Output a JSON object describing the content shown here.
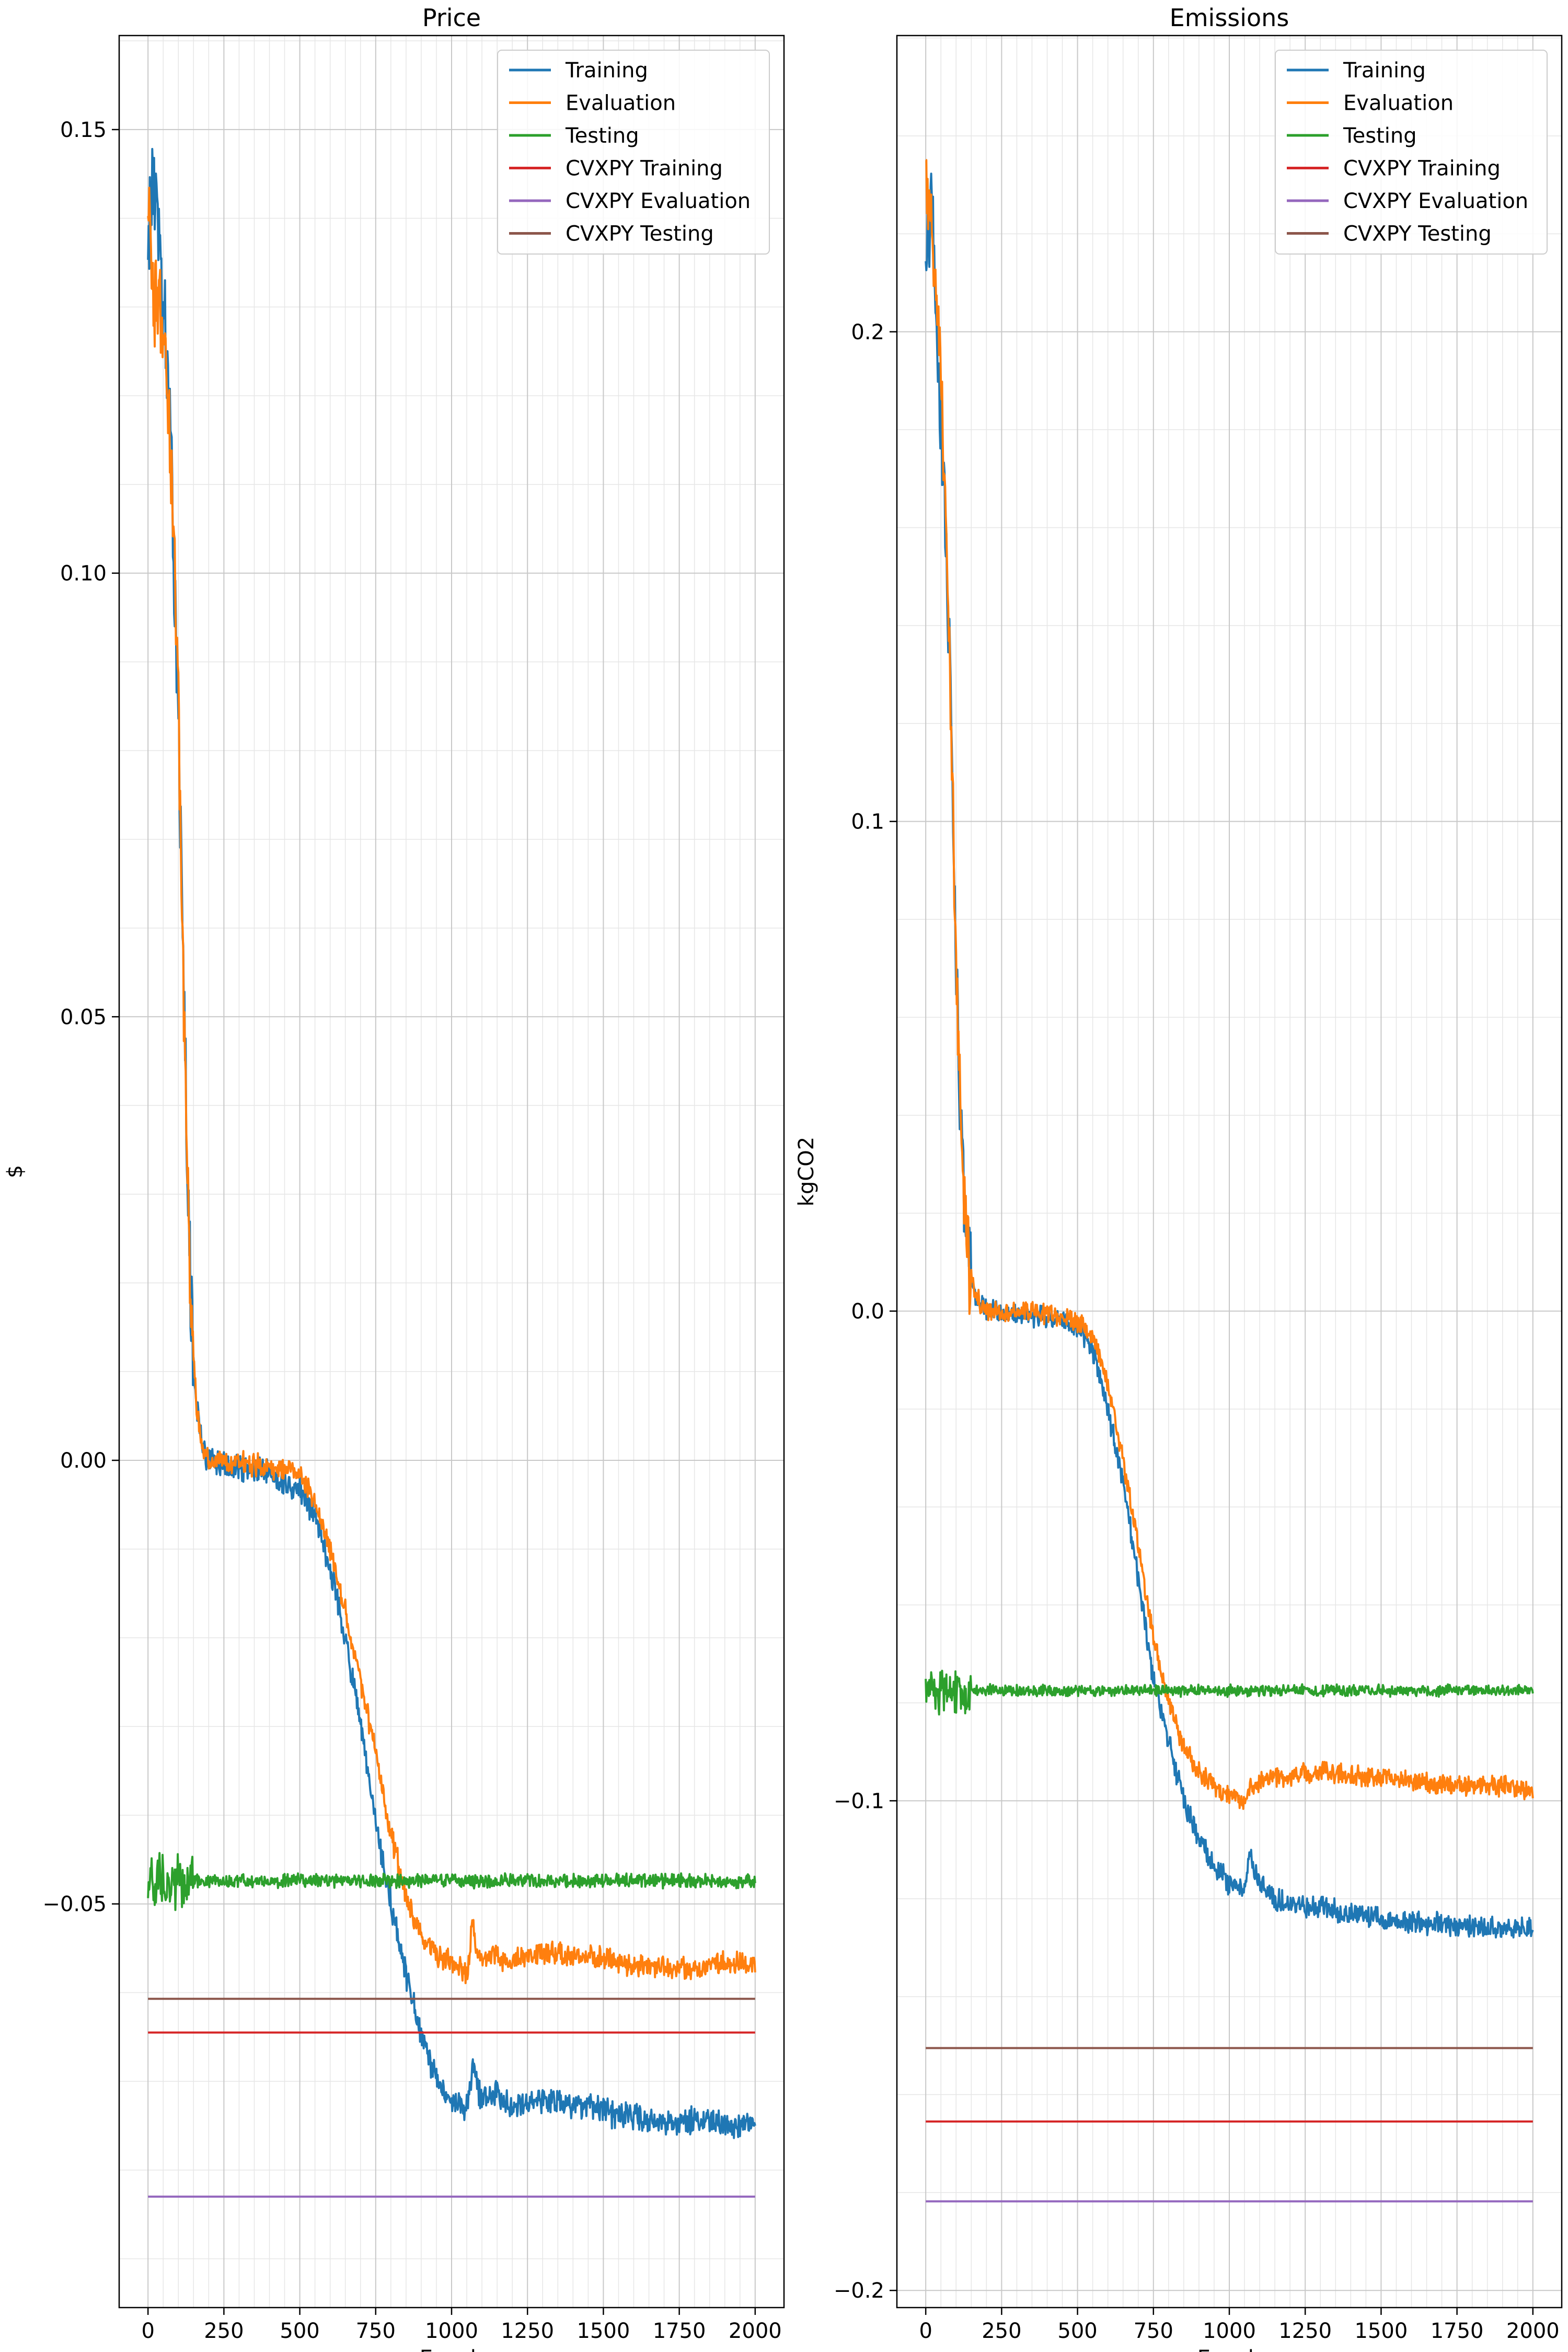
{
  "figure": {
    "panel_count": 2
  },
  "chart_data": [
    {
      "type": "line",
      "title": "Price",
      "xlabel": "Epoch",
      "ylabel": "$",
      "xlim": [
        -95,
        2095
      ],
      "ylim": [
        -0.0955,
        0.1606
      ],
      "xticks": [
        0,
        250,
        500,
        750,
        1000,
        1250,
        1500,
        1750,
        2000
      ],
      "xtick_labels": [
        "0",
        "250",
        "500",
        "750",
        "1000",
        "1250",
        "1500",
        "1750",
        "2000"
      ],
      "yticks": [
        -0.05,
        0.0,
        0.05,
        0.1,
        0.15
      ],
      "ytick_labels": [
        "−0.05",
        "0.00",
        "0.05",
        "0.10",
        "0.15"
      ],
      "grid": "major and minor",
      "legend_position": "top-right",
      "series": [
        {
          "name": "Training",
          "color": "#1f77b4",
          "noise": 0.0012,
          "x": [
            0,
            20,
            40,
            60,
            80,
            100,
            120,
            140,
            160,
            180,
            200,
            250,
            300,
            400,
            500,
            550,
            600,
            650,
            700,
            750,
            800,
            850,
            900,
            950,
            1000,
            1050,
            1070,
            1080,
            1100,
            1150,
            1200,
            1300,
            1400,
            1500,
            1600,
            1700,
            1800,
            1900,
            2000
          ],
          "y": [
            0.138,
            0.145,
            0.135,
            0.125,
            0.108,
            0.085,
            0.048,
            0.018,
            0.006,
            0.0015,
            0.0,
            -0.0005,
            -0.0008,
            -0.0015,
            -0.0035,
            -0.006,
            -0.012,
            -0.02,
            -0.03,
            -0.041,
            -0.05,
            -0.058,
            -0.065,
            -0.07,
            -0.072,
            -0.073,
            -0.068,
            -0.07,
            -0.072,
            -0.0715,
            -0.0725,
            -0.072,
            -0.0725,
            -0.0735,
            -0.074,
            -0.0745,
            -0.0745,
            -0.075,
            -0.075
          ]
        },
        {
          "name": "Evaluation",
          "color": "#ff7f0e",
          "noise": 0.001,
          "x": [
            0,
            20,
            40,
            60,
            80,
            100,
            120,
            140,
            160,
            180,
            200,
            250,
            300,
            400,
            500,
            550,
            600,
            650,
            700,
            750,
            800,
            850,
            900,
            950,
            1000,
            1050,
            1070,
            1080,
            1100,
            1150,
            1200,
            1300,
            1400,
            1500,
            1600,
            1700,
            1800,
            1900,
            2000
          ],
          "y": [
            0.143,
            0.13,
            0.13,
            0.125,
            0.108,
            0.085,
            0.048,
            0.018,
            0.006,
            0.0015,
            0.0,
            -0.0002,
            -0.0004,
            -0.0007,
            -0.0015,
            -0.0045,
            -0.01,
            -0.017,
            -0.025,
            -0.033,
            -0.042,
            -0.049,
            -0.054,
            -0.056,
            -0.0565,
            -0.058,
            -0.052,
            -0.055,
            -0.0565,
            -0.056,
            -0.0565,
            -0.0555,
            -0.056,
            -0.056,
            -0.057,
            -0.057,
            -0.0575,
            -0.0565,
            -0.057
          ]
        },
        {
          "name": "Testing",
          "color": "#2ca02c",
          "noise": 0.0006,
          "x": [
            0,
            2000
          ],
          "y": [
            -0.0474,
            -0.0474
          ]
        },
        {
          "name": "CVXPY Training",
          "color": "#d62728",
          "noise": 0,
          "x": [
            0,
            2000
          ],
          "y": [
            -0.0645,
            -0.0645
          ]
        },
        {
          "name": "CVXPY Evaluation",
          "color": "#9467bd",
          "noise": 0,
          "x": [
            0,
            2000
          ],
          "y": [
            -0.083,
            -0.083
          ]
        },
        {
          "name": "CVXPY Testing",
          "color": "#8c564b",
          "noise": 0,
          "x": [
            0,
            2000
          ],
          "y": [
            -0.0607,
            -0.0607
          ]
        }
      ]
    },
    {
      "type": "line",
      "title": "Emissions",
      "xlabel": "Epoch",
      "ylabel": "kgCO2",
      "xlim": [
        -95,
        2095
      ],
      "ylim": [
        -0.2035,
        0.2605
      ],
      "xticks": [
        0,
        250,
        500,
        750,
        1000,
        1250,
        1500,
        1750,
        2000
      ],
      "xtick_labels": [
        "0",
        "250",
        "500",
        "750",
        "1000",
        "1250",
        "1500",
        "1750",
        "2000"
      ],
      "yticks": [
        -0.2,
        -0.1,
        0.0,
        0.1,
        0.2
      ],
      "ytick_labels": [
        "−0.2",
        "−0.1",
        "0.0",
        "0.1",
        "0.2"
      ],
      "grid": "major and minor",
      "legend_position": "top-right",
      "series": [
        {
          "name": "Training",
          "color": "#1f77b4",
          "noise": 0.0018,
          "x": [
            0,
            20,
            40,
            60,
            80,
            100,
            120,
            140,
            160,
            180,
            200,
            300,
            400,
            500,
            550,
            600,
            650,
            700,
            750,
            800,
            850,
            900,
            950,
            1000,
            1050,
            1070,
            1080,
            1100,
            1150,
            1200,
            1300,
            1400,
            1500,
            1600,
            1700,
            1800,
            1900,
            2000
          ],
          "y": [
            0.215,
            0.225,
            0.195,
            0.17,
            0.13,
            0.07,
            0.03,
            0.01,
            0.004,
            0.0015,
            0.0,
            -0.0005,
            -0.001,
            -0.003,
            -0.008,
            -0.02,
            -0.035,
            -0.055,
            -0.075,
            -0.088,
            -0.1,
            -0.108,
            -0.113,
            -0.117,
            -0.118,
            -0.11,
            -0.114,
            -0.117,
            -0.12,
            -0.121,
            -0.122,
            -0.123,
            -0.124,
            -0.125,
            -0.125,
            -0.126,
            -0.126,
            -0.126
          ]
        },
        {
          "name": "Evaluation",
          "color": "#ff7f0e",
          "noise": 0.0016,
          "x": [
            0,
            20,
            40,
            60,
            80,
            100,
            120,
            140,
            160,
            180,
            200,
            300,
            400,
            500,
            550,
            600,
            650,
            700,
            750,
            800,
            850,
            900,
            950,
            1000,
            1050,
            1070,
            1080,
            1100,
            1150,
            1200,
            1300,
            1400,
            1500,
            1600,
            1700,
            1800,
            1900,
            2000
          ],
          "y": [
            0.23,
            0.22,
            0.205,
            0.17,
            0.13,
            0.07,
            0.03,
            0.01,
            0.004,
            0.0015,
            0.0,
            0.0,
            -0.0005,
            -0.002,
            -0.005,
            -0.015,
            -0.03,
            -0.048,
            -0.067,
            -0.08,
            -0.089,
            -0.094,
            -0.097,
            -0.099,
            -0.1,
            -0.096,
            -0.097,
            -0.096,
            -0.095,
            -0.095,
            -0.094,
            -0.095,
            -0.095,
            -0.096,
            -0.097,
            -0.097,
            -0.097,
            -0.098
          ]
        },
        {
          "name": "Testing",
          "color": "#2ca02c",
          "noise": 0.0009,
          "x": [
            0,
            2000
          ],
          "y": [
            -0.0775,
            -0.0775
          ]
        },
        {
          "name": "CVXPY Training",
          "color": "#d62728",
          "noise": 0,
          "x": [
            0,
            2000
          ],
          "y": [
            -0.1655,
            -0.1655
          ]
        },
        {
          "name": "CVXPY Evaluation",
          "color": "#9467bd",
          "noise": 0,
          "x": [
            0,
            2000
          ],
          "y": [
            -0.1818,
            -0.1818
          ]
        },
        {
          "name": "CVXPY Testing",
          "color": "#8c564b",
          "noise": 0,
          "x": [
            0,
            2000
          ],
          "y": [
            -0.1505,
            -0.1505
          ]
        }
      ]
    }
  ]
}
